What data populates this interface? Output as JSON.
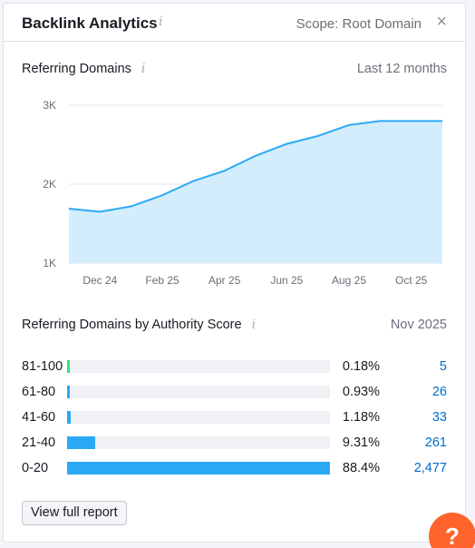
{
  "widget": {
    "title": "Backlink Analytics",
    "info_glyph": "i",
    "scope": "Scope: Root Domain",
    "close_glyph": "×"
  },
  "referring_domains": {
    "title": "Referring Domains",
    "period": "Last 12 months"
  },
  "chart_data": {
    "type": "area",
    "title": "",
    "xlabel": "",
    "ylabel": "",
    "x": [
      "Nov 24",
      "Dec 24",
      "Jan 25",
      "Feb 25",
      "Mar 25",
      "Apr 25",
      "May 25",
      "Jun 25",
      "Jul 25",
      "Aug 25",
      "Sep 25",
      "Oct 25",
      "Nov 25"
    ],
    "x_tick_labels": [
      "Dec 24",
      "Feb 25",
      "Apr 25",
      "Jun 25",
      "Aug 25",
      "Oct 25"
    ],
    "y_tick_labels": [
      "3K",
      "2K",
      "1K"
    ],
    "y_ticks": [
      3000,
      2000,
      1000
    ],
    "ylim": [
      1000,
      3000
    ],
    "grid": true,
    "series": [
      {
        "values": [
          1690,
          1650,
          1720,
          1860,
          2040,
          2170,
          2360,
          2510,
          2610,
          2750,
          2800,
          2800,
          2800
        ]
      }
    ],
    "colors": {
      "line": "#2ca9f5",
      "fill": "#d3edfc",
      "grid": "#e3e5ec"
    }
  },
  "authority": {
    "title": "Referring Domains by Authority Score",
    "date": "Nov 2025",
    "rows": [
      {
        "label": "81-100",
        "percent": "0.18%",
        "count": "5",
        "value": 0.18,
        "color": "#2ee57a"
      },
      {
        "label": "61-80",
        "percent": "0.93%",
        "count": "26",
        "value": 0.93,
        "color": "#2ca9f5"
      },
      {
        "label": "41-60",
        "percent": "1.18%",
        "count": "33",
        "value": 1.18,
        "color": "#2ca9f5"
      },
      {
        "label": "21-40",
        "percent": "9.31%",
        "count": "261",
        "value": 9.31,
        "color": "#2ca9f5"
      },
      {
        "label": "0-20",
        "percent": "88.4%",
        "count": "2,477",
        "value": 88.4,
        "color": "#2ca9f5"
      }
    ]
  },
  "actions": {
    "view_report": "View full report",
    "help_glyph": "?"
  }
}
